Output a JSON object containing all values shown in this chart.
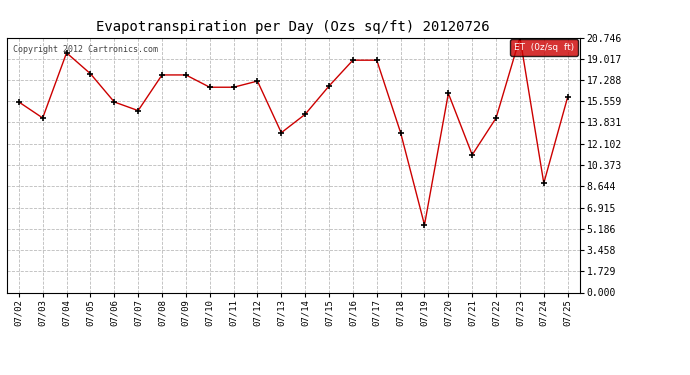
{
  "title": "Evapotranspiration per Day (Ozs sq/ft) 20120726",
  "copyright": "Copyright 2012 Cartronics.com",
  "legend_label": "ET  (0z/sq  ft)",
  "dates": [
    "07/02",
    "07/03",
    "07/04",
    "07/05",
    "07/06",
    "07/07",
    "07/08",
    "07/09",
    "07/10",
    "07/11",
    "07/12",
    "07/13",
    "07/14",
    "07/15",
    "07/16",
    "07/17",
    "07/18",
    "07/19",
    "07/20",
    "07/21",
    "07/22",
    "07/23",
    "07/24",
    "07/25"
  ],
  "values": [
    15.5,
    14.2,
    19.5,
    17.8,
    15.5,
    14.8,
    17.7,
    17.7,
    16.7,
    16.7,
    17.2,
    13.0,
    14.5,
    16.8,
    18.9,
    18.9,
    13.0,
    5.5,
    16.2,
    11.2,
    14.2,
    20.746,
    8.9,
    15.9
  ],
  "yticks": [
    0.0,
    1.729,
    3.458,
    5.186,
    6.915,
    8.644,
    10.373,
    12.102,
    13.831,
    15.559,
    17.288,
    19.017,
    20.746
  ],
  "ymin": 0.0,
  "ymax": 20.746,
  "line_color": "#cc0000",
  "marker_color": "#000000",
  "bg_color": "#ffffff",
  "grid_color": "#bbbbbb",
  "title_color": "#000000",
  "copyright_color": "#444444",
  "legend_bg": "#cc0000",
  "legend_text_color": "#ffffff"
}
